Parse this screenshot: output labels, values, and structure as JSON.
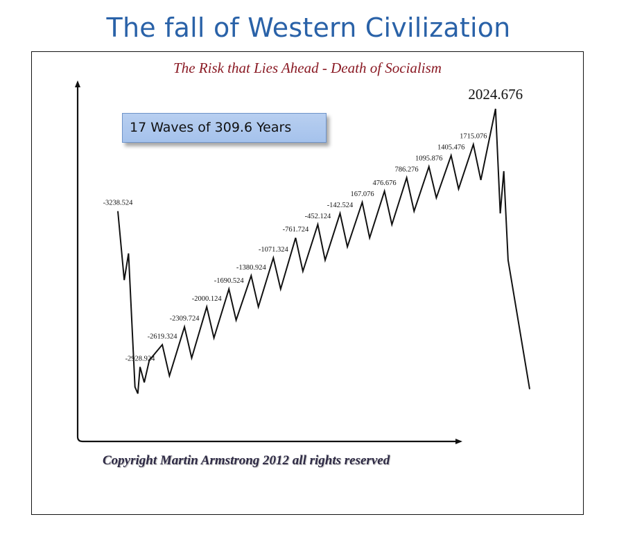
{
  "header": {
    "title": "The fall of Western Civilization"
  },
  "chart_data": {
    "type": "line",
    "title": "The Risk that Lies Ahead - Death of Socialism",
    "annotation": "17 Waves of 309.6 Years",
    "copyright": "Copyright Martin Armstrong 2012 all rights reserved",
    "xlabel": "",
    "ylabel": "",
    "grid": false,
    "wave_length_years": 309.6,
    "wave_count": 17,
    "peak_labels": [
      "-3238.524",
      "-2928.924",
      "-2619.324",
      "-2309.724",
      "-2000.124",
      "-1690.524",
      "-1380.924",
      "-1071.324",
      "-761.724",
      "-452.124",
      "-142.524",
      "167.076",
      "476.676",
      "786.276",
      "1095.876",
      "1405.476",
      "1715.076",
      "2024.676"
    ],
    "peak_years": [
      -3238.524,
      -2928.924,
      -2619.324,
      -2309.724,
      -2000.124,
      -1690.524,
      -1380.924,
      -1071.324,
      -761.724,
      -452.124,
      -142.524,
      167.076,
      476.676,
      786.276,
      1095.876,
      1405.476,
      1715.076,
      2024.676
    ],
    "series": [
      {
        "x": [
          -3238.524,
          -3150,
          -3090,
          -3000,
          -2960,
          -2928.924,
          -2870,
          -2800,
          -2619.324,
          -2520,
          -2309.724,
          -2210,
          -2000.124,
          -1900,
          -1690.524,
          -1590,
          -1380.924,
          -1280,
          -1071.324,
          -970,
          -761.724,
          -660,
          -452.124,
          -350,
          -142.524,
          -40,
          167.076,
          270,
          476.676,
          580,
          786.276,
          890,
          1095.876,
          1200,
          1405.476,
          1510,
          1715.076,
          1820,
          2024.676,
          2090,
          2140,
          2200,
          2500
        ],
        "y": [
          82,
          51,
          63,
          3,
          0,
          12,
          5,
          15,
          22,
          8,
          30,
          16,
          39,
          25,
          47,
          33,
          53,
          39,
          61,
          47,
          70,
          55,
          76,
          60,
          81,
          66,
          86,
          70,
          91,
          76,
          97,
          82,
          102,
          88,
          107,
          92,
          112,
          96,
          128,
          81,
          100,
          60,
          2
        ]
      }
    ]
  }
}
